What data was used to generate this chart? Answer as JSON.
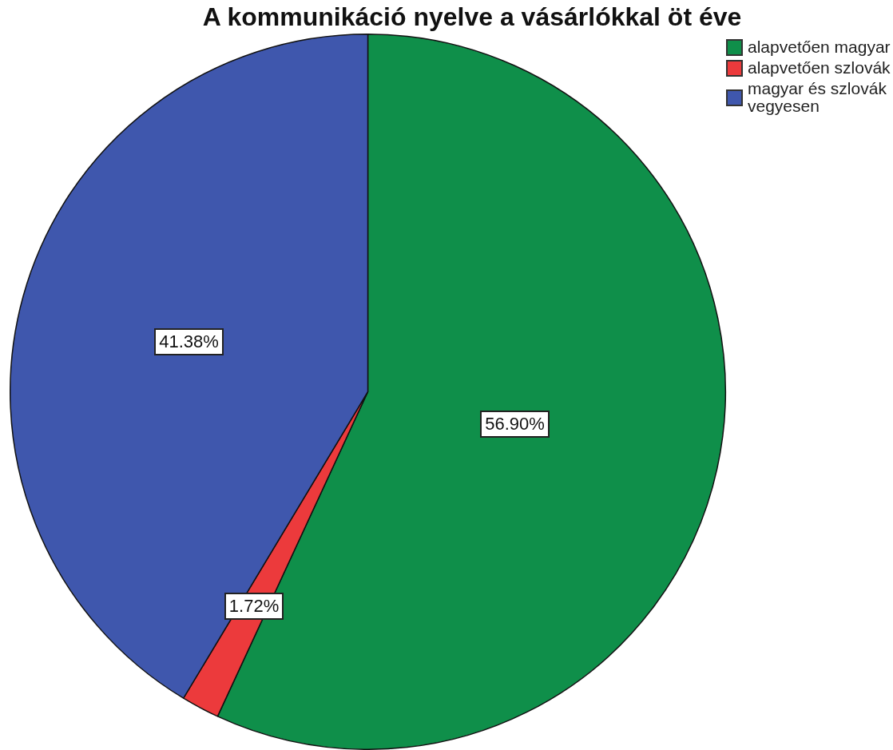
{
  "chart_data": {
    "type": "pie",
    "title": "A kommunikáció nyelve a vásárlókkal öt éve",
    "categories": [
      "alapvetően magyar",
      "alapvetően szlovák",
      "magyar és szlovák vegyesen"
    ],
    "values": [
      56.9,
      1.72,
      41.38
    ],
    "colors": [
      "#0f8f4a",
      "#ec3a3c",
      "#3f57ad"
    ],
    "value_labels": [
      "56.90%",
      "1.72%",
      "41.38%"
    ],
    "legend": "top right"
  }
}
